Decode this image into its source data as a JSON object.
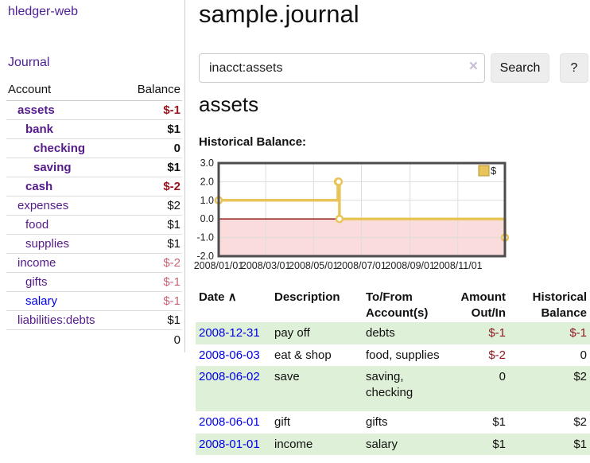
{
  "brand": {
    "label": "hledger-web"
  },
  "nav": {
    "journal_label": "Journal"
  },
  "sidebar": {
    "headers": {
      "account": "Account",
      "balance": "Balance"
    },
    "accounts": [
      {
        "name": "assets",
        "balance": "$-1"
      },
      {
        "name": "bank",
        "balance": "$1"
      },
      {
        "name": "checking",
        "balance": "0"
      },
      {
        "name": "saving",
        "balance": "$1"
      },
      {
        "name": "cash",
        "balance": "$-2"
      },
      {
        "name": "expenses",
        "balance": "$2"
      },
      {
        "name": "food",
        "balance": "$1"
      },
      {
        "name": "supplies",
        "balance": "$1"
      },
      {
        "name": "income",
        "balance": "$-2"
      },
      {
        "name": "gifts",
        "balance": "$-1"
      },
      {
        "name": "salary",
        "balance": "$-1"
      },
      {
        "name": "liabilities:debts",
        "balance": "$1"
      }
    ],
    "total": "0"
  },
  "main": {
    "title": "sample.journal",
    "search": {
      "value": "inacct:assets",
      "clear_icon": "×",
      "search_button": "Search",
      "help_button": "?"
    },
    "account_heading": "assets",
    "chart_title": "Historical Balance:"
  },
  "chart_data": {
    "type": "line",
    "step": true,
    "title": "Historical Balance:",
    "series": [
      {
        "name": "$",
        "points": [
          [
            "2008-01-01",
            1
          ],
          [
            "2008-06-01",
            2
          ],
          [
            "2008-06-02",
            2
          ],
          [
            "2008-06-03",
            0
          ],
          [
            "2008-12-31",
            -1
          ]
        ]
      }
    ],
    "x_range": [
      "2008-01-01",
      "2008-12-31"
    ],
    "ylim": [
      -2,
      3
    ],
    "y_ticks": [
      "3.0",
      "2.0",
      "1.0",
      "0.0",
      "-1.0",
      "-2.0"
    ],
    "x_ticks": [
      "2008/01/01",
      "2008/03/01",
      "2008/05/01",
      "2008/07/01",
      "2008/09/01",
      "2008/11/01"
    ],
    "legend": {
      "label": "$",
      "position": "top-right"
    },
    "grid": true,
    "line_color": "#e8c45a",
    "legend_border_color": "#b5952f",
    "negative_region_fill": "#fbdcdc",
    "zero_line_color": "#8b0000",
    "plot_border_color": "#4d4d4d",
    "grid_color": "#dddddd"
  },
  "register": {
    "headers": {
      "date": "Date",
      "sort_indicator": "∧",
      "description": "Description",
      "accounts": "To/From Account(s)",
      "amount": "Amount Out/In",
      "balance": "Historical Balance"
    },
    "rows": [
      {
        "date": "2008-12-31",
        "description": "pay off",
        "accounts": "debts",
        "amount": "$-1",
        "balance": "$-1"
      },
      {
        "date": "2008-06-03",
        "description": "eat & shop",
        "accounts": "food, supplies",
        "amount": "$-2",
        "balance": "0"
      },
      {
        "date": "2008-06-02",
        "description": "save",
        "accounts": "saving, checking",
        "amount": "0",
        "balance": "$2"
      },
      {
        "date": "2008-06-01",
        "description": "gift",
        "accounts": "gifts",
        "amount": "$1",
        "balance": "$2"
      },
      {
        "date": "2008-01-01",
        "description": "income",
        "accounts": "salary",
        "amount": "$1",
        "balance": "$1"
      }
    ]
  }
}
